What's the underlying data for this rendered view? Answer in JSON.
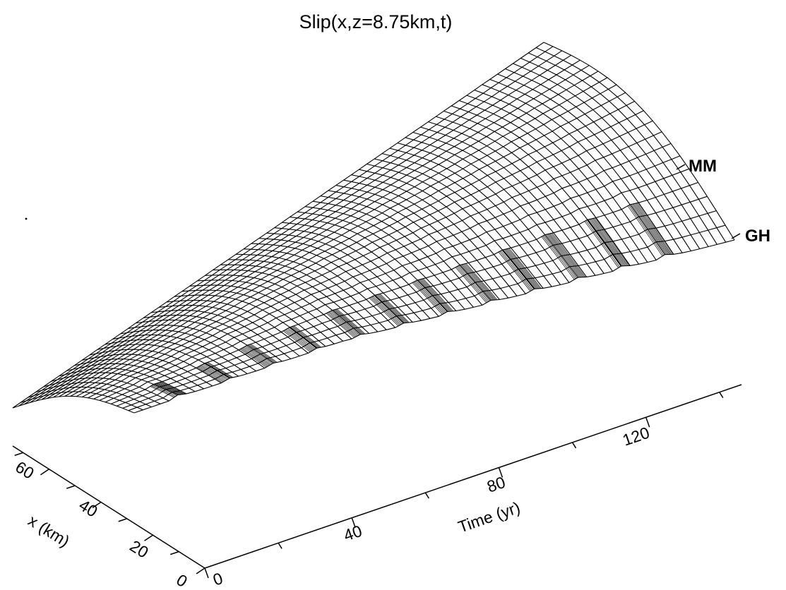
{
  "chart_data": {
    "type": "surface",
    "title": "Slip(x,z=8.75km,t)",
    "xlabel": "Time (yr)",
    "ylabel": "x (km)",
    "time_ticks": [
      "0",
      "40",
      "80",
      "120"
    ],
    "x_ticks": [
      "0",
      "20",
      "40",
      "60"
    ],
    "time_range": [
      0,
      150
    ],
    "x_range": [
      0,
      70
    ],
    "annotations": [
      {
        "label": "MM"
      },
      {
        "label": "GH"
      }
    ],
    "surface": {
      "earthquake_times_yr": [
        10,
        22,
        33,
        44,
        55,
        66,
        77,
        88,
        99,
        110,
        121,
        132
      ],
      "grid_time_lines": 70,
      "grid_x_lines": 22
    }
  }
}
